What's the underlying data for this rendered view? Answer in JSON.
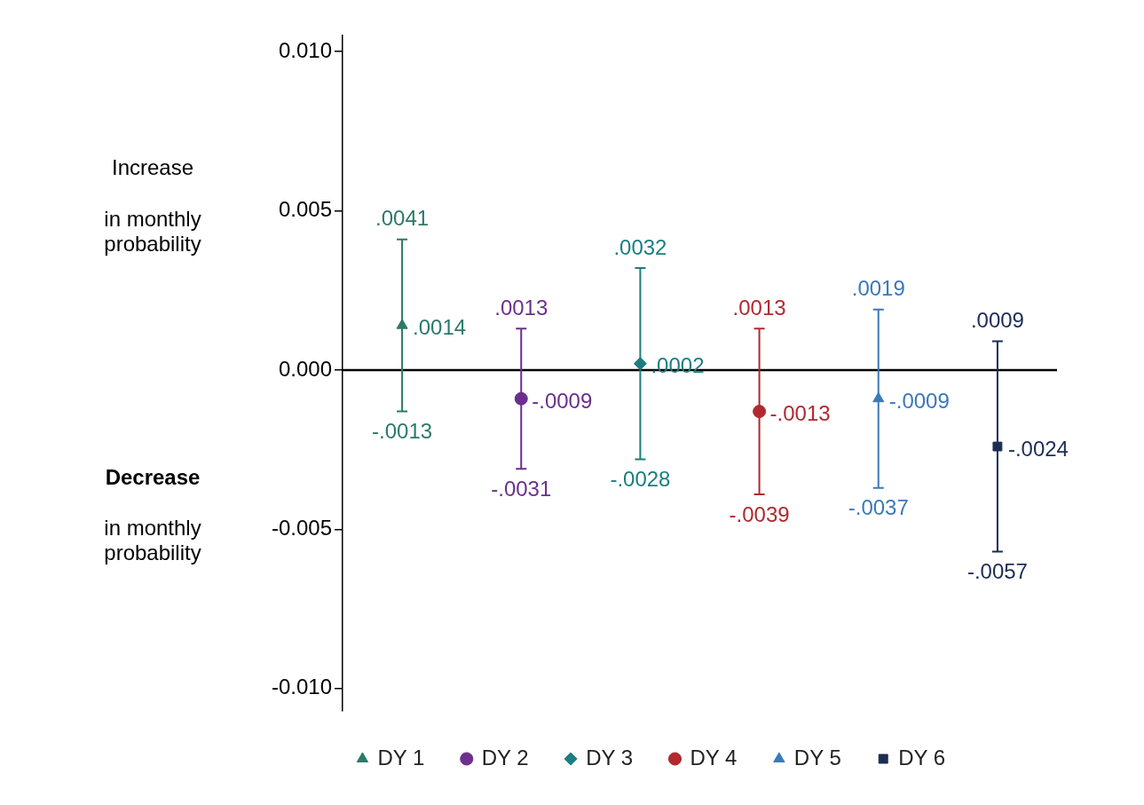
{
  "chart_data": {
    "type": "scatter",
    "categories": [
      null,
      null,
      null,
      null,
      null,
      null
    ],
    "ylim": [
      -0.0107,
      0.0105
    ],
    "yticks": [
      {
        "value": 0.01,
        "label": "0.010"
      },
      {
        "value": 0.005,
        "label": "0.005"
      },
      {
        "value": 0,
        "label": "0.000"
      },
      {
        "value": -0.005,
        "label": "-0.005"
      },
      {
        "value": -0.01,
        "label": "-0.010"
      }
    ],
    "grid": false,
    "legend": "bottom",
    "ref_lines": [
      {
        "axis": "y",
        "value": 0,
        "color": "#000000"
      }
    ],
    "series": [
      {
        "name": "DY 1",
        "color": "#2b7a68",
        "marker": "triangle",
        "values": [
          0.0014,
          null,
          null,
          null,
          null,
          null
        ],
        "errors": [
          [
            -0.0013,
            0.0041
          ],
          null,
          null,
          null,
          null,
          null
        ],
        "value_labels": [
          ".0014",
          null,
          null,
          null,
          null,
          null
        ]
      },
      {
        "name": "DY 2",
        "color": "#6b2f8f",
        "marker": "circle",
        "values": [
          null,
          -0.0009,
          null,
          null,
          null,
          null
        ],
        "errors": [
          null,
          [
            -0.0031,
            0.0013
          ],
          null,
          null,
          null,
          null
        ],
        "value_labels": [
          null,
          "-.0009",
          null,
          null,
          null,
          null
        ]
      },
      {
        "name": "DY 3",
        "color": "#1c7e80",
        "marker": "diamond",
        "values": [
          null,
          null,
          0.0002,
          null,
          null,
          null
        ],
        "errors": [
          null,
          null,
          [
            -0.0028,
            0.0032
          ],
          null,
          null,
          null
        ],
        "value_labels": [
          null,
          null,
          ".0002",
          null,
          null,
          null
        ]
      },
      {
        "name": "DY 4",
        "color": "#b1292f",
        "marker": "circle",
        "values": [
          null,
          null,
          null,
          -0.0013,
          null,
          null
        ],
        "errors": [
          null,
          null,
          null,
          [
            -0.0039,
            0.0013
          ],
          null,
          null
        ],
        "value_labels": [
          null,
          null,
          null,
          "-.0013",
          null,
          null
        ]
      },
      {
        "name": "DY 5",
        "color": "#3b79b9",
        "marker": "triangle",
        "values": [
          null,
          null,
          null,
          null,
          -0.0009,
          null
        ],
        "errors": [
          null,
          null,
          null,
          null,
          [
            -0.0037,
            0.0019
          ],
          null
        ],
        "value_labels": [
          null,
          null,
          null,
          null,
          "-.0009",
          null
        ]
      },
      {
        "name": "DY 6",
        "color": "#1c2d56",
        "marker": "square",
        "values": [
          null,
          null,
          null,
          null,
          null,
          -0.0024
        ],
        "errors": [
          null,
          null,
          null,
          null,
          null,
          [
            -0.0057,
            0.0009
          ]
        ],
        "value_labels": [
          null,
          null,
          null,
          null,
          null,
          "-.0024"
        ]
      }
    ],
    "annotations": [
      {
        "text": ".0041",
        "y": 0.0041
      },
      {
        "text": "-.0013",
        "y": -0.0013
      },
      {
        "text": ".0013",
        "y": 0.0013
      },
      {
        "text": "-.0031",
        "y": -0.0031
      },
      {
        "text": ".0032",
        "y": 0.0032
      },
      {
        "text": "-.0028",
        "y": -0.0028
      },
      {
        "text": ".0013",
        "y": 0.0013
      },
      {
        "text": "-.0039",
        "y": -0.0039
      },
      {
        "text": ".0019",
        "y": 0.0019
      },
      {
        "text": "-.0037",
        "y": -0.0037
      },
      {
        "text": ".0009",
        "y": 0.0009
      },
      {
        "text": "-.0057",
        "y": -0.0057
      },
      "Increase",
      "in monthly\nprobability",
      "Decrease",
      "in monthly\nprobability"
    ]
  }
}
